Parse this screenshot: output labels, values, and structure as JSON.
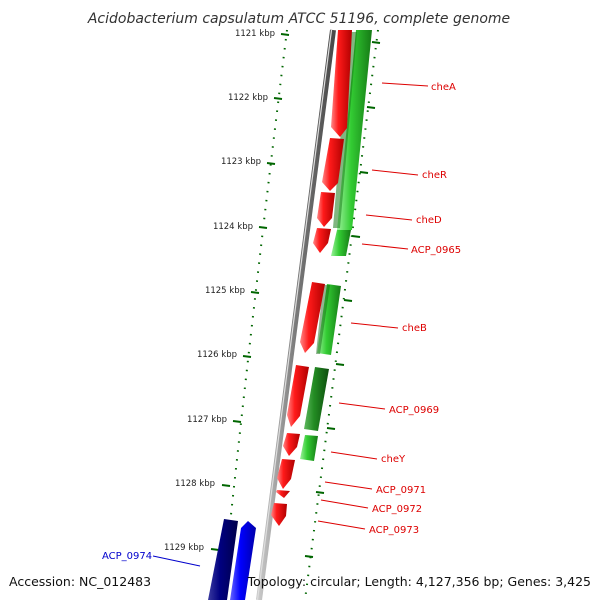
{
  "title": "Acidobacterium capsulatum ATCC 51196, complete genome",
  "accession": "Accession: NC_012483",
  "topology": "Topology: circular; Length: 4,127,356 bp; Genes: 3,425",
  "ticks": [
    "1121 kbp",
    "1122 kbp",
    "1123 kbp",
    "1124 kbp",
    "1125 kbp",
    "1126 kbp",
    "1127 kbp",
    "1128 kbp",
    "1129 kbp"
  ],
  "gene_labels": [
    {
      "id": "cheA",
      "text": "cheA",
      "color": "#dd0000"
    },
    {
      "id": "cheR",
      "text": "cheR",
      "color": "#dd0000"
    },
    {
      "id": "cheD",
      "text": "cheD",
      "color": "#dd0000"
    },
    {
      "id": "acp0965",
      "text": "ACP_0965",
      "color": "#dd0000"
    },
    {
      "id": "cheB",
      "text": "cheB",
      "color": "#dd0000"
    },
    {
      "id": "acp0969",
      "text": "ACP_0969",
      "color": "#dd0000"
    },
    {
      "id": "cheY",
      "text": "cheY",
      "color": "#dd0000"
    },
    {
      "id": "acp0971",
      "text": "ACP_0971",
      "color": "#dd0000"
    },
    {
      "id": "acp0972",
      "text": "ACP_0972",
      "color": "#dd0000"
    },
    {
      "id": "acp0973",
      "text": "ACP_0973",
      "color": "#dd0000"
    },
    {
      "id": "acp0974",
      "text": "ACP_0974",
      "color": "#0000cc"
    }
  ],
  "colors": {
    "forward_gene": "#ff0000",
    "orf": "#33cc33",
    "reverse_gene": "#0000ff",
    "dark_reverse_gene": "#000080",
    "backbone": "#808080",
    "ticks": "#006600"
  }
}
